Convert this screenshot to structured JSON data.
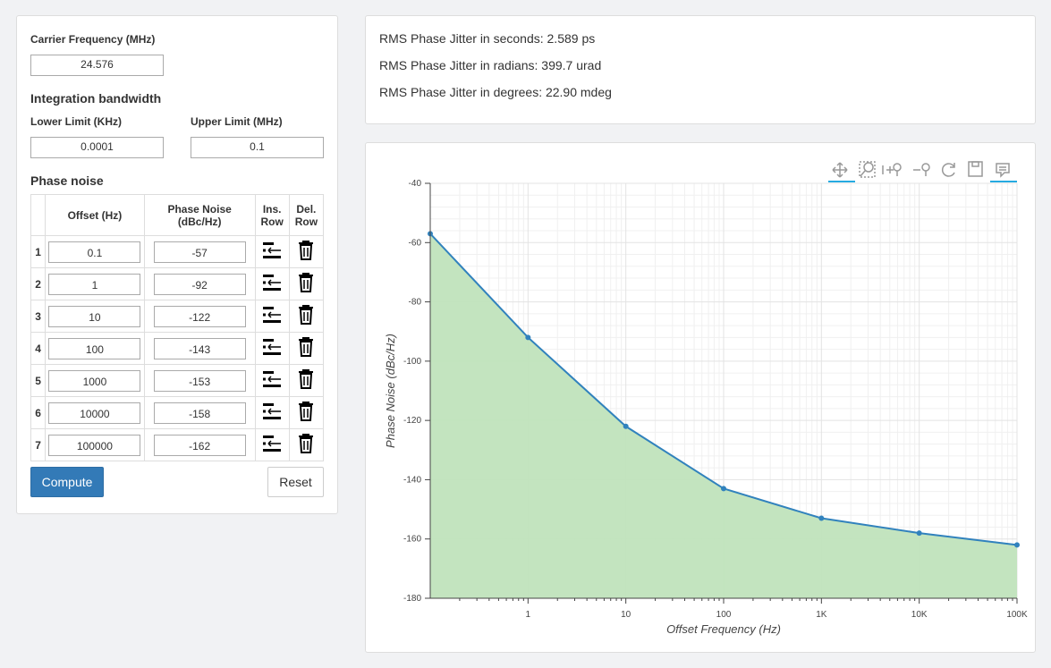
{
  "form": {
    "carrier_label": "Carrier Frequency (MHz)",
    "carrier_value": "24.576",
    "integration_title": "Integration bandwidth",
    "lower_label": "Lower Limit (KHz)",
    "lower_value": "0.0001",
    "upper_label": "Upper Limit (MHz)",
    "upper_value": "0.1",
    "phase_noise_title": "Phase noise",
    "table": {
      "headers": [
        "Offset (Hz)",
        "Phase Noise (dBc/Hz)",
        "Ins. Row",
        "Del. Row"
      ],
      "rows": [
        [
          "1",
          "0.1",
          "-57"
        ],
        [
          "2",
          "1",
          "-92"
        ],
        [
          "3",
          "10",
          "-122"
        ],
        [
          "4",
          "100",
          "-143"
        ],
        [
          "5",
          "1000",
          "-153"
        ],
        [
          "6",
          "10000",
          "-158"
        ],
        [
          "7",
          "100000",
          "-162"
        ]
      ]
    },
    "compute": "Compute",
    "reset": "Reset"
  },
  "results": [
    "RMS Phase Jitter in seconds: 2.589 ps",
    "RMS Phase Jitter in radians: 399.7 urad",
    "RMS Phase Jitter in degrees: 22.90 mdeg"
  ],
  "chart_data": {
    "type": "line",
    "x": [
      0.1,
      1,
      10,
      100,
      1000,
      10000,
      100000
    ],
    "series": [
      {
        "values": [
          -57,
          -92,
          -122,
          -143,
          -153,
          -158,
          -162
        ],
        "color": "#3182bd",
        "fill": "#c0e3bc"
      }
    ],
    "xlabel": "Offset Frequency (Hz)",
    "ylabel": "Phase Noise (dBc/Hz)",
    "xscale": "log",
    "grid": true,
    "xlim": [
      0.1,
      100000
    ],
    "xticks": [
      1,
      10,
      100,
      {
        "value": 1000,
        "label": "1K"
      },
      {
        "value": 10000,
        "label": "10K"
      },
      {
        "value": 100000,
        "label": "100K"
      }
    ],
    "ylim": [
      -180,
      -40
    ],
    "yticks": [
      -40,
      -60,
      -80,
      -100,
      -120,
      -140,
      -160,
      -180
    ]
  }
}
